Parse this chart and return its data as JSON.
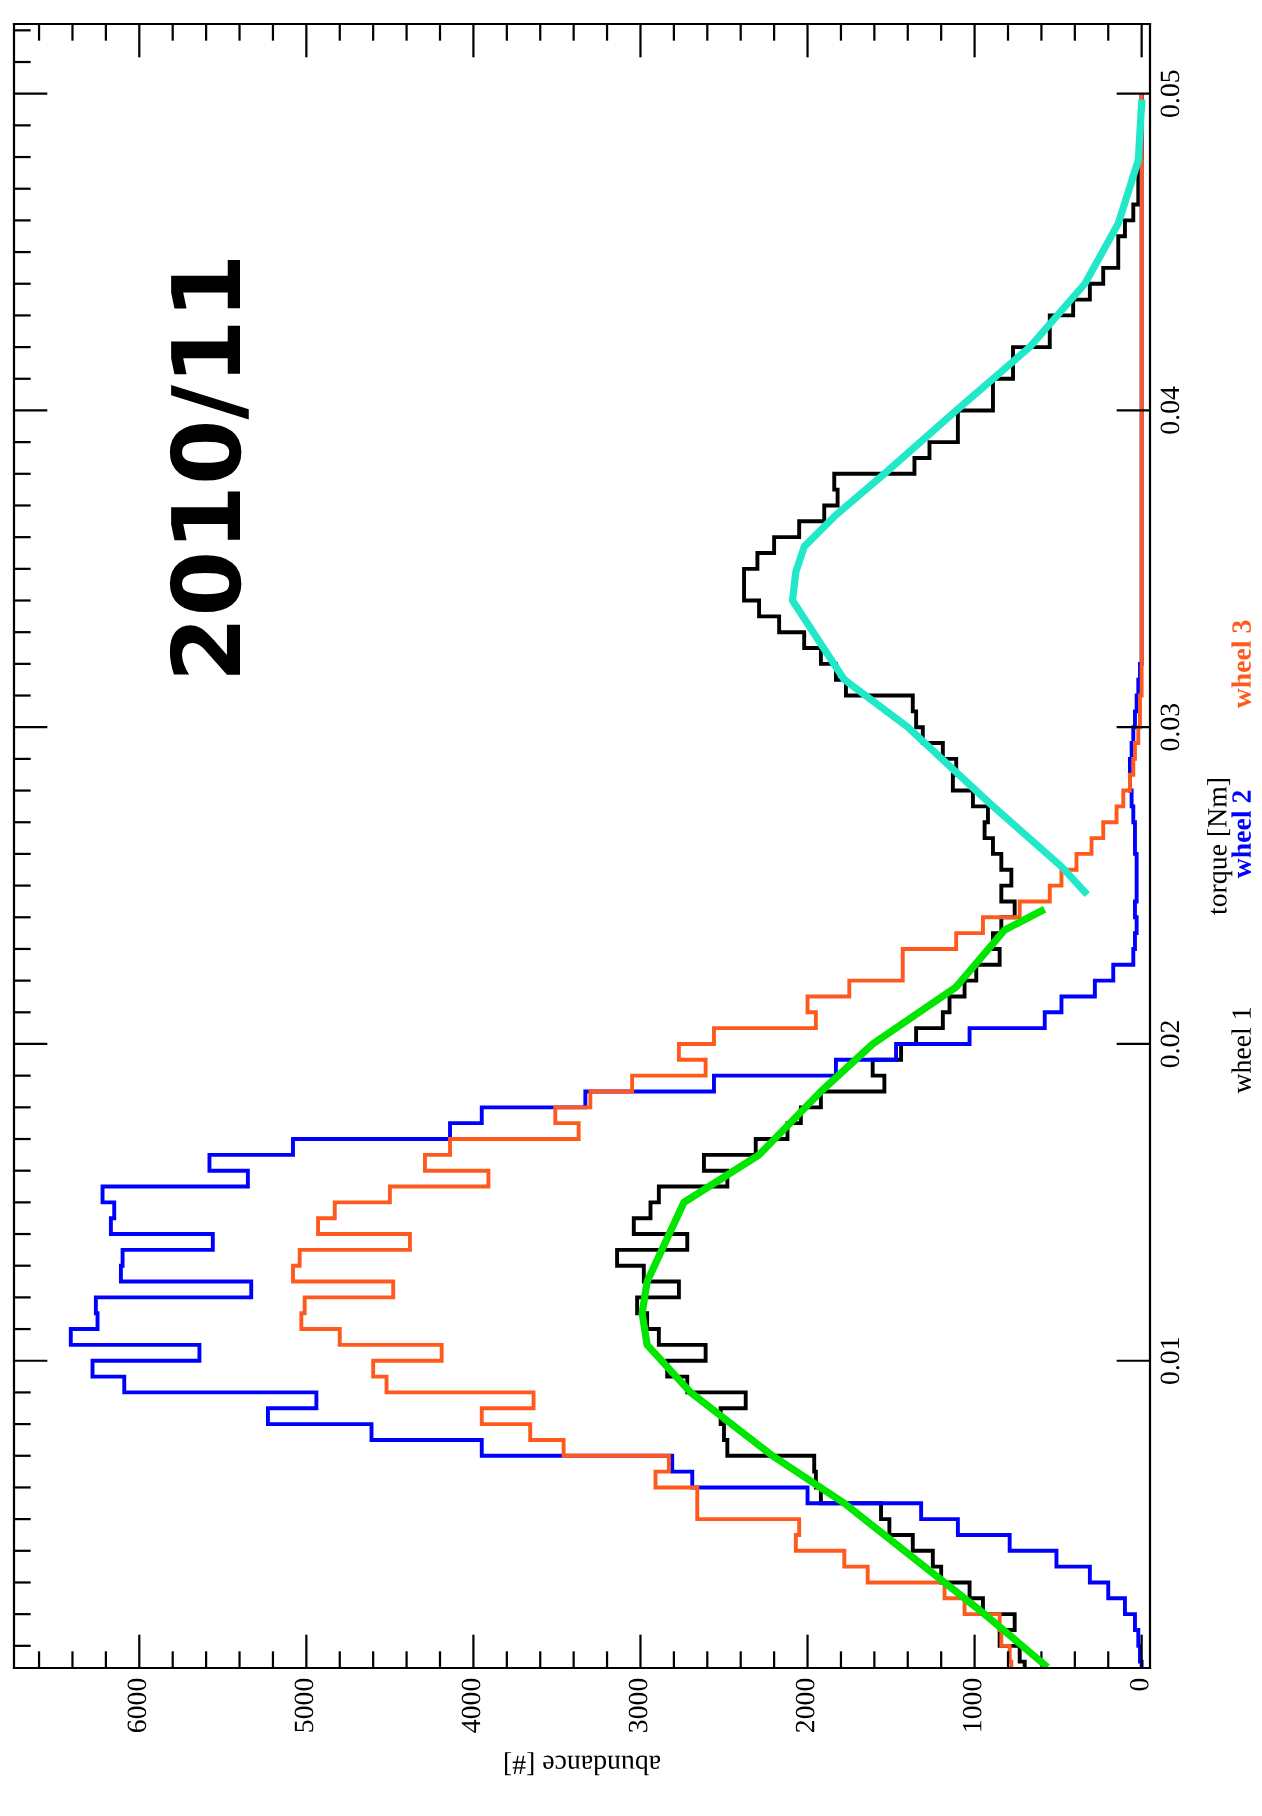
{
  "chart_data": {
    "type": "histogram",
    "orientation": "horizontal",
    "xlabel": "abundance [#]",
    "ylabel": "torque [Nm]",
    "annotations": [
      "2010/11"
    ],
    "bins": [
      0.0,
      0.0005,
      0.001,
      0.0015,
      0.002,
      0.0025,
      0.003,
      0.0035,
      0.004,
      0.0045,
      0.005,
      0.0055,
      0.006,
      0.0065,
      0.007,
      0.0075,
      0.008,
      0.0085,
      0.009,
      0.0095,
      0.01,
      0.0105,
      0.011,
      0.0115,
      0.012,
      0.0125,
      0.013,
      0.0135,
      0.014,
      0.0145,
      0.015,
      0.0155,
      0.016,
      0.0165,
      0.017,
      0.0175,
      0.018,
      0.0185,
      0.019,
      0.0195,
      0.02,
      0.0205,
      0.021,
      0.0215,
      0.022,
      0.0225,
      0.023,
      0.0235,
      0.024,
      0.0245,
      0.025,
      0.0255,
      0.026,
      0.0265,
      0.027,
      0.0275,
      0.028,
      0.0285,
      0.029,
      0.0295,
      0.03,
      0.0305,
      0.031,
      0.0315,
      0.032,
      0.0325,
      0.033,
      0.0335,
      0.034,
      0.0345,
      0.035,
      0.0355,
      0.036,
      0.0365,
      0.037,
      0.0375,
      0.038,
      0.0385,
      0.039,
      0.0395,
      0.04,
      0.0405,
      0.041,
      0.0415,
      0.042,
      0.0425,
      0.043,
      0.0435,
      0.044,
      0.0445,
      0.045,
      0.0455,
      0.046,
      0.0465,
      0.047,
      0.0475,
      0.048,
      0.0485,
      0.049,
      0.0495,
      0.05
    ],
    "series": [
      {
        "name": "wheel 1",
        "color": "#000000",
        "values": [
          700,
          730,
          850,
          760,
          950,
          1030,
          1200,
          1250,
          1370,
          1510,
          1560,
          1920,
          1950,
          1960,
          2480,
          2500,
          2520,
          2370,
          2720,
          2840,
          2610,
          2890,
          2960,
          3020,
          2770,
          2980,
          3140,
          2720,
          3040,
          2940,
          2890,
          2480,
          2620,
          2310,
          2120,
          2040,
          1920,
          1540,
          1610,
          1440,
          1350,
          1190,
          1150,
          1060,
          990,
          850,
          890,
          840,
          760,
          840,
          780,
          840,
          890,
          940,
          920,
          1010,
          1130,
          1110,
          1190,
          1310,
          1350,
          1370,
          1770,
          1830,
          1920,
          2020,
          2170,
          2290,
          2380,
          2380,
          2300,
          2200,
          2050,
          1900,
          1820,
          1840,
          1360,
          1270,
          1100,
          1100,
          890,
          890,
          770,
          770,
          550,
          550,
          410,
          310,
          230,
          140,
          140,
          100,
          50,
          20,
          20,
          10,
          0,
          0,
          0,
          0
        ]
      },
      {
        "name": "wheel 2",
        "color": "#0000ff",
        "values": [
          0,
          10,
          20,
          40,
          100,
          200,
          310,
          510,
          790,
          1100,
          1320,
          2000,
          2690,
          2810,
          3950,
          4610,
          5230,
          4940,
          6090,
          6280,
          5640,
          6410,
          6250,
          6260,
          5330,
          6110,
          6100,
          5560,
          6170,
          6150,
          6220,
          5350,
          5580,
          5080,
          4140,
          3950,
          3330,
          2560,
          1830,
          1470,
          1030,
          580,
          480,
          280,
          170,
          50,
          40,
          30,
          40,
          30,
          30,
          30,
          40,
          40,
          50,
          60,
          70,
          70,
          60,
          50,
          40,
          30,
          20,
          10,
          0,
          0,
          0,
          0,
          0,
          0,
          0,
          0,
          0,
          0,
          0,
          0,
          0,
          0,
          0,
          0,
          0,
          0,
          0,
          0,
          0,
          0,
          0,
          0,
          0,
          0,
          0,
          0,
          0,
          0,
          0,
          0,
          0,
          0,
          0,
          0
        ]
      },
      {
        "name": "wheel 3",
        "color": "#ff5a1e",
        "values": [
          780,
          790,
          840,
          850,
          1060,
          1180,
          1640,
          1780,
          2070,
          2050,
          2660,
          2660,
          2910,
          2830,
          3460,
          3660,
          3950,
          3640,
          4520,
          4600,
          4190,
          4800,
          5030,
          5010,
          4480,
          5080,
          5040,
          4380,
          4930,
          4830,
          4500,
          3910,
          4290,
          4140,
          3370,
          3510,
          3300,
          3050,
          2610,
          2770,
          2560,
          1950,
          2000,
          1750,
          1430,
          1430,
          1110,
          950,
          730,
          550,
          480,
          390,
          300,
          230,
          150,
          110,
          70,
          50,
          40,
          20,
          10,
          10,
          0,
          0,
          0,
          0,
          0,
          0,
          0,
          0,
          0,
          0,
          0,
          0,
          0,
          0,
          0,
          0,
          0,
          0,
          0,
          0,
          0,
          0,
          0,
          0,
          0,
          0,
          0,
          0,
          0,
          0,
          0,
          0,
          0,
          0,
          0,
          0,
          0,
          0
        ]
      },
      {
        "type": "line",
        "color": "#00e600",
        "x": [
          0.0004,
          0.002,
          0.0055,
          0.007,
          0.009,
          0.0105,
          0.0115,
          0.0125,
          0.015,
          0.0165,
          0.0185,
          0.02,
          0.0218,
          0.0236,
          0.0242
        ],
        "values": [
          580,
          940,
          1780,
          2210,
          2700,
          2960,
          2990,
          2960,
          2740,
          2290,
          1920,
          1610,
          1110,
          820,
          600
        ]
      },
      {
        "type": "line",
        "color": "#20e8c8",
        "x": [
          0.0248,
          0.0256,
          0.0276,
          0.03,
          0.0315,
          0.034,
          0.0349,
          0.0357,
          0.0367,
          0.038,
          0.04,
          0.042,
          0.044,
          0.0459,
          0.0479,
          0.0497
        ],
        "values": [
          340,
          480,
          910,
          1400,
          1780,
          2090,
          2070,
          2020,
          1830,
          1540,
          1110,
          670,
          340,
          140,
          20,
          0
        ]
      }
    ],
    "xlim": [
      6750,
      -50
    ],
    "xticks": [
      0,
      1000,
      2000,
      3000,
      4000,
      5000,
      6000,
      {
        "value": 200,
        "label": null
      },
      {
        "value": 400,
        "label": null
      },
      {
        "value": 600,
        "label": null
      },
      {
        "value": 800,
        "label": null
      },
      {
        "value": 1200,
        "label": null
      },
      {
        "value": 1400,
        "label": null
      },
      {
        "value": 1600,
        "label": null
      },
      {
        "value": 1800,
        "label": null
      },
      {
        "value": 2200,
        "label": null
      },
      {
        "value": 2400,
        "label": null
      },
      {
        "value": 2600,
        "label": null
      },
      {
        "value": 2800,
        "label": null
      },
      {
        "value": 3200,
        "label": null
      },
      {
        "value": 3400,
        "label": null
      },
      {
        "value": 3600,
        "label": null
      },
      {
        "value": 3800,
        "label": null
      },
      {
        "value": 4200,
        "label": null
      },
      {
        "value": 4400,
        "label": null
      },
      {
        "value": 4600,
        "label": null
      },
      {
        "value": 4800,
        "label": null
      },
      {
        "value": 5200,
        "label": null
      },
      {
        "value": 5400,
        "label": null
      },
      {
        "value": 5600,
        "label": null
      },
      {
        "value": 5800,
        "label": null
      },
      {
        "value": 6200,
        "label": null
      },
      {
        "value": 6400,
        "label": null
      },
      {
        "value": 6600,
        "label": null
      }
    ],
    "ylim": [
      0.0003,
      0.0522
    ],
    "yticks": [
      0.01,
      0.02,
      0.03,
      0.04,
      0.05,
      {
        "value": 0.001,
        "label": null
      },
      {
        "value": 0.002,
        "label": null
      },
      {
        "value": 0.003,
        "label": null
      },
      {
        "value": 0.004,
        "label": null
      },
      {
        "value": 0.005,
        "label": null
      },
      {
        "value": 0.006,
        "label": null
      },
      {
        "value": 0.007,
        "label": null
      },
      {
        "value": 0.008,
        "label": null
      },
      {
        "value": 0.009,
        "label": null
      },
      {
        "value": 0.011,
        "label": null
      },
      {
        "value": 0.012,
        "label": null
      },
      {
        "value": 0.013,
        "label": null
      },
      {
        "value": 0.014,
        "label": null
      },
      {
        "value": 0.015,
        "label": null
      },
      {
        "value": 0.016,
        "label": null
      },
      {
        "value": 0.017,
        "label": null
      },
      {
        "value": 0.018,
        "label": null
      },
      {
        "value": 0.019,
        "label": null
      },
      {
        "value": 0.021,
        "label": null
      },
      {
        "value": 0.022,
        "label": null
      },
      {
        "value": 0.023,
        "label": null
      },
      {
        "value": 0.024,
        "label": null
      },
      {
        "value": 0.025,
        "label": null
      },
      {
        "value": 0.026,
        "label": null
      },
      {
        "value": 0.027,
        "label": null
      },
      {
        "value": 0.028,
        "label": null
      },
      {
        "value": 0.029,
        "label": null
      },
      {
        "value": 0.031,
        "label": null
      },
      {
        "value": 0.032,
        "label": null
      },
      {
        "value": 0.033,
        "label": null
      },
      {
        "value": 0.034,
        "label": null
      },
      {
        "value": 0.035,
        "label": null
      },
      {
        "value": 0.036,
        "label": null
      },
      {
        "value": 0.037,
        "label": null
      },
      {
        "value": 0.038,
        "label": null
      },
      {
        "value": 0.039,
        "label": null
      },
      {
        "value": 0.041,
        "label": null
      },
      {
        "value": 0.042,
        "label": null
      },
      {
        "value": 0.043,
        "label": null
      },
      {
        "value": 0.044,
        "label": null
      },
      {
        "value": 0.045,
        "label": null
      },
      {
        "value": 0.046,
        "label": null
      },
      {
        "value": 0.047,
        "label": null
      },
      {
        "value": 0.048,
        "label": null
      },
      {
        "value": 0.049,
        "label": null
      },
      {
        "value": 0.051,
        "label": null
      },
      {
        "value": 0.052,
        "label": null
      }
    ]
  }
}
